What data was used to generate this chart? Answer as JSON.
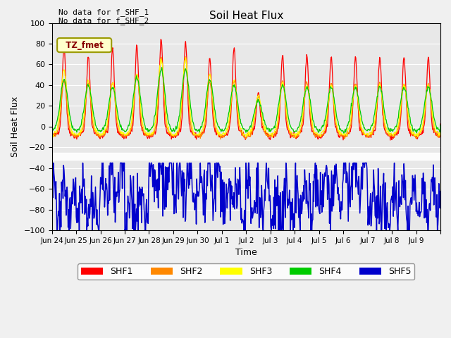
{
  "title": "Soil Heat Flux",
  "xlabel": "Time",
  "ylabel": "Soil Heat Flux",
  "ylim": [
    -100,
    100
  ],
  "yticks": [
    -100,
    -80,
    -60,
    -40,
    -20,
    0,
    20,
    40,
    60,
    80,
    100
  ],
  "bg_color": "#e8e8e8",
  "fig_facecolor": "#f0f0f0",
  "annotation1": "No data for f_SHF_1",
  "annotation2": "No data for f_SHF_2",
  "tz_label": "TZ_fmet",
  "legend_labels": [
    "SHF1",
    "SHF2",
    "SHF3",
    "SHF4",
    "SHF5"
  ],
  "colors": [
    "#ff0000",
    "#ff8800",
    "#ffff00",
    "#00cc00",
    "#0000cc"
  ],
  "x_tick_positions": [
    0,
    1,
    2,
    3,
    4,
    5,
    6,
    7,
    8,
    9,
    10,
    11,
    12,
    13,
    14,
    15,
    16
  ],
  "x_tick_labels": [
    "Jun 24",
    "Jun 25",
    "Jun 26",
    "Jun 27",
    "Jun 28",
    "Jun 29",
    "Jun 30",
    "Jul 1",
    "Jul 2",
    "Jul 3",
    "Jul 4",
    "Jul 5",
    "Jul 6",
    "Jul 7",
    "Jul 8",
    "Jul 9",
    ""
  ],
  "n_days": 16,
  "xlim": [
    0,
    16
  ]
}
